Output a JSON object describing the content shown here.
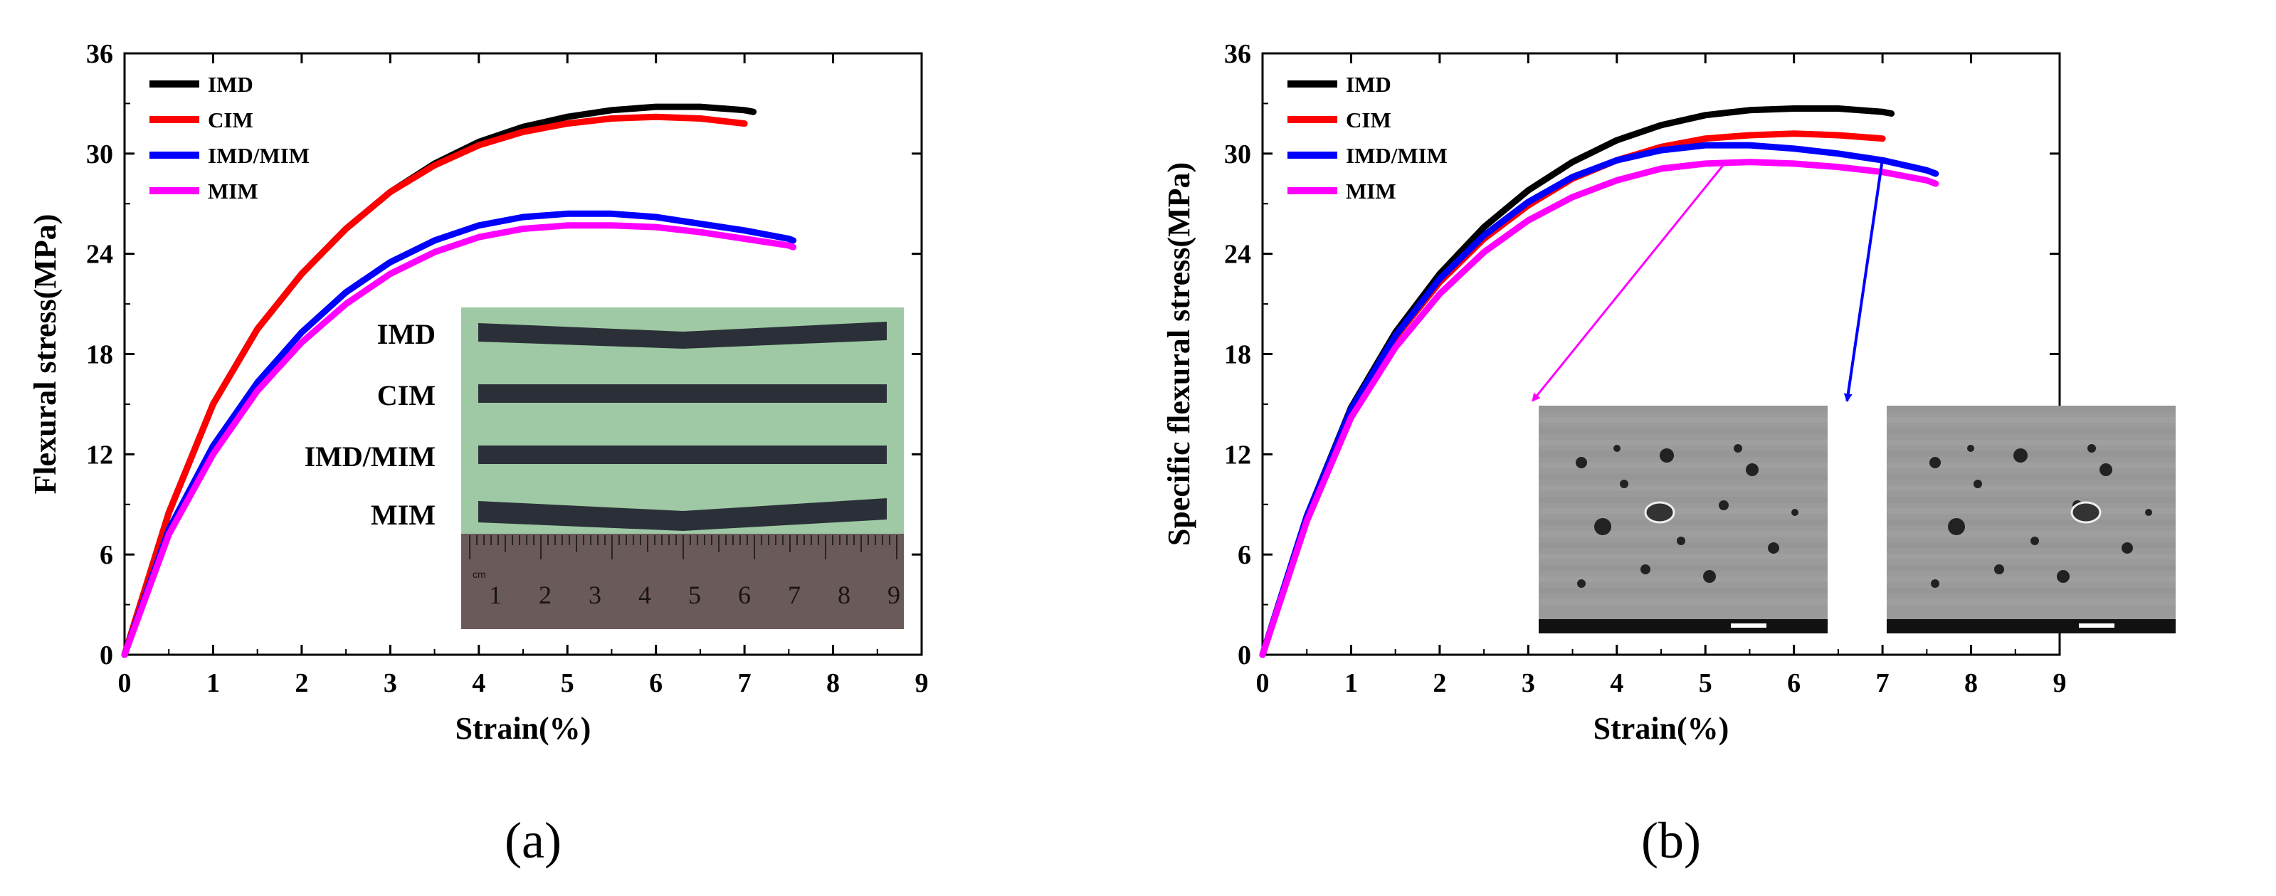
{
  "chart_data": [
    {
      "type": "line",
      "panel_label": "(a)",
      "xlabel": "Strain(%)",
      "ylabel": "Flexural stress(MPa)",
      "xlim": [
        0,
        9
      ],
      "ylim": [
        0,
        36
      ],
      "xticks": [
        "0",
        "1",
        "2",
        "3",
        "4",
        "5",
        "6",
        "7",
        "8",
        "9"
      ],
      "yticks": [
        "0",
        "6",
        "12",
        "18",
        "24",
        "30",
        "36"
      ],
      "legend_position": "top-left",
      "series": [
        {
          "name": "IMD",
          "color": "#000000",
          "x": [
            0,
            0.5,
            1,
            1.5,
            2,
            2.5,
            3,
            3.5,
            4,
            4.5,
            5,
            5.5,
            6,
            6.5,
            7,
            7.1
          ],
          "y": [
            0,
            8.5,
            15,
            19.5,
            22.8,
            25.5,
            27.7,
            29.4,
            30.7,
            31.6,
            32.2,
            32.6,
            32.8,
            32.8,
            32.6,
            32.5
          ]
        },
        {
          "name": "CIM",
          "color": "#ff0000",
          "x": [
            0,
            0.5,
            1,
            1.5,
            2,
            2.5,
            3,
            3.5,
            4,
            4.5,
            5,
            5.5,
            6,
            6.5,
            7
          ],
          "y": [
            0,
            8.5,
            15,
            19.5,
            22.8,
            25.5,
            27.7,
            29.3,
            30.5,
            31.3,
            31.8,
            32.1,
            32.2,
            32.1,
            31.8
          ]
        },
        {
          "name": "IMD/MIM",
          "color": "#0000ff",
          "x": [
            0,
            0.5,
            1,
            1.5,
            2,
            2.5,
            3,
            3.5,
            4,
            4.5,
            5,
            5.5,
            6,
            6.5,
            7,
            7.5,
            7.55
          ],
          "y": [
            0,
            7.5,
            12.5,
            16.3,
            19.3,
            21.7,
            23.5,
            24.8,
            25.7,
            26.2,
            26.4,
            26.4,
            26.2,
            25.8,
            25.4,
            24.9,
            24.8
          ]
        },
        {
          "name": "MIM",
          "color": "#ff00ff",
          "x": [
            0,
            0.5,
            1,
            1.5,
            2,
            2.5,
            3,
            3.5,
            4,
            4.5,
            5,
            5.5,
            6,
            6.5,
            7,
            7.5,
            7.55
          ],
          "y": [
            0,
            7.2,
            12.0,
            15.8,
            18.7,
            21.0,
            22.8,
            24.1,
            25.0,
            25.5,
            25.7,
            25.7,
            25.6,
            25.3,
            24.9,
            24.5,
            24.4
          ]
        }
      ],
      "inset": {
        "kind": "photo",
        "sample_labels": [
          "IMD",
          "CIM",
          "IMD/MIM",
          "MIM"
        ],
        "ruler_numbers": [
          "1",
          "2",
          "3",
          "4",
          "5",
          "6",
          "7",
          "8",
          "9"
        ],
        "ruler_unit": "cm"
      }
    },
    {
      "type": "line",
      "panel_label": "(b)",
      "xlabel": "Strain(%)",
      "ylabel": "Specific flexural stress(MPa)",
      "xlim": [
        0,
        9
      ],
      "ylim": [
        0,
        36
      ],
      "xticks": [
        "0",
        "1",
        "2",
        "3",
        "4",
        "5",
        "6",
        "7",
        "8",
        "9"
      ],
      "yticks": [
        "0",
        "6",
        "12",
        "18",
        "24",
        "30",
        "36"
      ],
      "legend_position": "top-left",
      "series": [
        {
          "name": "IMD",
          "color": "#000000",
          "x": [
            0,
            0.5,
            1,
            1.5,
            2,
            2.5,
            3,
            3.5,
            4,
            4.5,
            5,
            5.5,
            6,
            6.5,
            7,
            7.1
          ],
          "y": [
            0,
            8.3,
            14.8,
            19.3,
            22.8,
            25.6,
            27.8,
            29.5,
            30.8,
            31.7,
            32.3,
            32.6,
            32.7,
            32.7,
            32.5,
            32.4
          ]
        },
        {
          "name": "CIM",
          "color": "#ff0000",
          "x": [
            0,
            0.5,
            1,
            1.5,
            2,
            2.5,
            3,
            3.5,
            4,
            4.5,
            5,
            5.5,
            6,
            6.5,
            7
          ],
          "y": [
            0,
            8.2,
            14.6,
            19.0,
            22.3,
            24.9,
            26.9,
            28.5,
            29.6,
            30.4,
            30.9,
            31.1,
            31.2,
            31.1,
            30.9
          ]
        },
        {
          "name": "IMD/MIM",
          "color": "#0000ff",
          "x": [
            0,
            0.5,
            1,
            1.5,
            2,
            2.5,
            3,
            3.5,
            4,
            4.5,
            5,
            5.5,
            6,
            6.5,
            7,
            7.5,
            7.6
          ],
          "y": [
            0,
            8.3,
            14.7,
            19.1,
            22.5,
            25.1,
            27.1,
            28.6,
            29.6,
            30.2,
            30.5,
            30.5,
            30.3,
            30.0,
            29.6,
            29.0,
            28.8
          ]
        },
        {
          "name": "MIM",
          "color": "#ff00ff",
          "x": [
            0,
            0.5,
            1,
            1.5,
            2,
            2.5,
            3,
            3.5,
            4,
            4.5,
            5,
            5.5,
            6,
            6.5,
            7,
            7.5,
            7.6
          ],
          "y": [
            0,
            8.0,
            14.2,
            18.4,
            21.6,
            24.1,
            26.0,
            27.4,
            28.4,
            29.1,
            29.4,
            29.5,
            29.4,
            29.2,
            28.9,
            28.4,
            28.2
          ]
        }
      ],
      "inset": {
        "kind": "sem-micrographs",
        "count": 2,
        "arrow_colors": [
          "#ff00ff",
          "#0000ff"
        ]
      }
    }
  ]
}
